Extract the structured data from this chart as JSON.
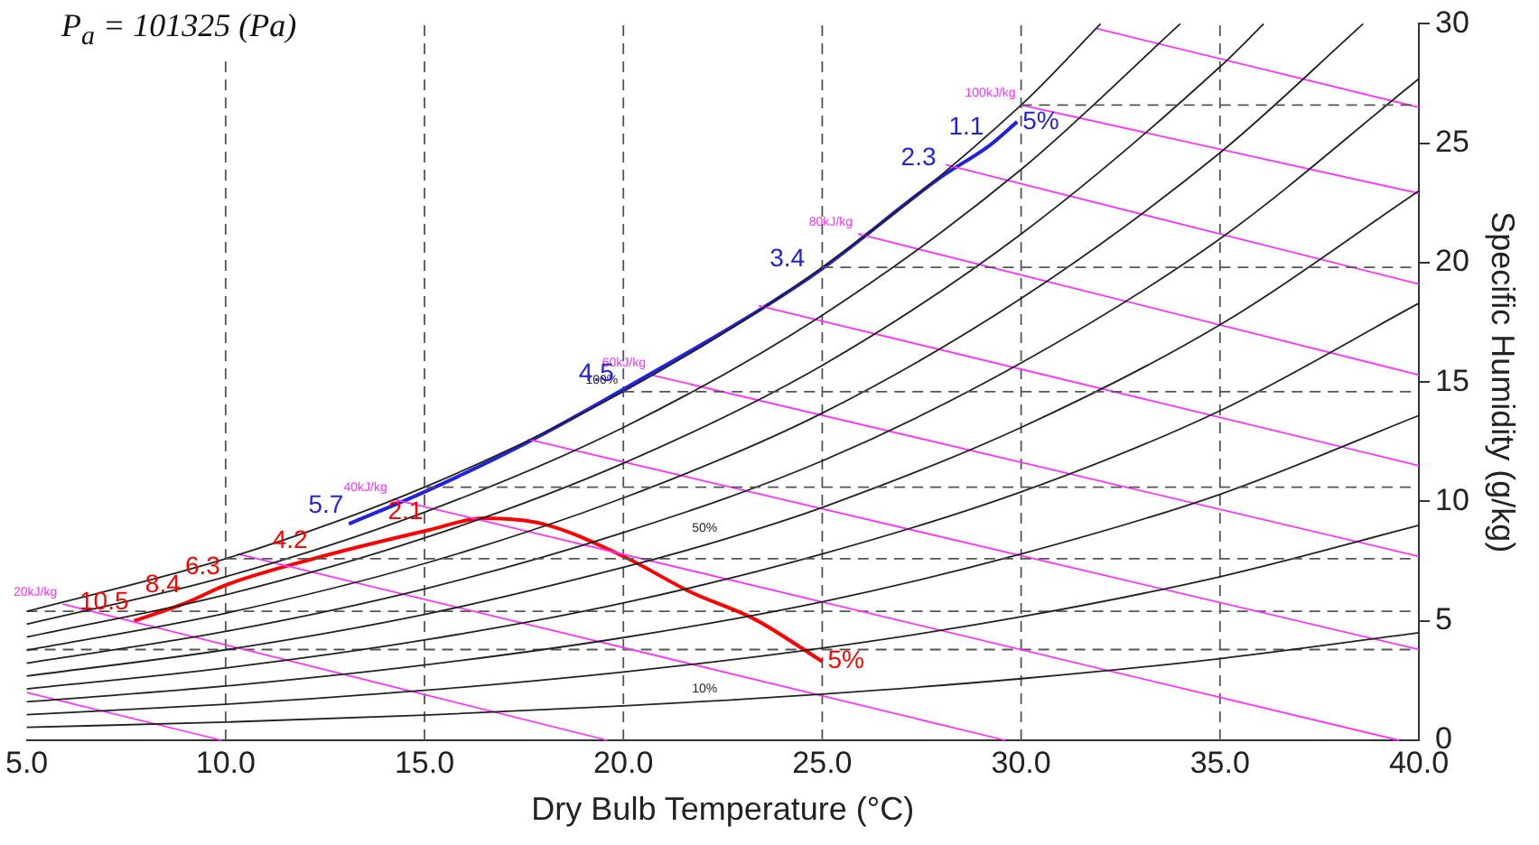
{
  "chart_data": {
    "type": "line",
    "title": "P$_{a}$ = 101325 (Pa)",
    "xlabel": "Dry Bulb Temperature (°C)",
    "ylabel": "Specific Humidity (g/kg)",
    "marker": "none",
    "xlim": [
      5,
      40
    ],
    "xticks": [
      {
        "value": 5,
        "label": "5.0"
      },
      {
        "value": 10,
        "label": "10.0"
      },
      {
        "value": 15,
        "label": "15.0"
      },
      {
        "value": 20,
        "label": "20.0"
      },
      {
        "value": 25,
        "label": "25.0"
      },
      {
        "value": 30,
        "label": "30.0"
      },
      {
        "value": 35,
        "label": "35.0"
      },
      {
        "value": 40,
        "label": "40.0"
      }
    ],
    "ylim": [
      0,
      30
    ],
    "yticks": [
      0,
      5,
      10,
      15,
      20,
      25,
      30
    ],
    "ref_lines": [
      {
        "axis": "x",
        "value": 10,
        "color": "#555555",
        "line_style": "dashed"
      },
      {
        "axis": "x",
        "value": 15,
        "color": "#555555",
        "line_style": "dashed"
      },
      {
        "axis": "x",
        "value": 20,
        "color": "#555555",
        "line_style": "dashed"
      },
      {
        "axis": "x",
        "value": 25,
        "color": "#555555",
        "line_style": "dashed"
      },
      {
        "axis": "x",
        "value": 30,
        "color": "#555555",
        "line_style": "dashed"
      },
      {
        "axis": "x",
        "value": 35,
        "color": "#555555",
        "line_style": "dashed"
      },
      {
        "axis": "y",
        "value": 3.8,
        "color": "#555555",
        "line_style": "dashed"
      },
      {
        "axis": "y",
        "value": 5.4,
        "color": "#555555",
        "line_style": "dashed"
      }
    ],
    "annotations": [
      {
        "text": "100%",
        "x": 20,
        "y": 14.6
      },
      {
        "text": "50%",
        "x": 22.5,
        "y": 8.4
      },
      {
        "text": "10%",
        "x": 22.5,
        "y": 1.67
      },
      {
        "text": "20kJ/kg",
        "x": 5.9,
        "y": 5.7
      },
      {
        "text": "40kJ/kg",
        "x": 14.2,
        "y": 10.1
      },
      {
        "text": "60kJ/kg",
        "x": 20.7,
        "y": 15.3
      },
      {
        "text": "80kJ/kg",
        "x": 25.9,
        "y": 21.2
      },
      {
        "text": "100kJ/kg",
        "x": 30.0,
        "y": 26.6
      },
      {
        "text": "10.5",
        "x": 7.7,
        "y": 5.0
      },
      {
        "text": "8.4",
        "x": 9.0,
        "y": 5.75
      },
      {
        "text": "6.3",
        "x": 10.0,
        "y": 6.5
      },
      {
        "text": "4.2",
        "x": 12.2,
        "y": 7.6
      },
      {
        "text": "2.1",
        "x": 15.1,
        "y": 8.8
      },
      {
        "text": "5%",
        "x": 25.0,
        "y": 3.3
      },
      {
        "text": "5.7",
        "x": 13.1,
        "y": 9.06
      },
      {
        "text": "4.5",
        "x": 19.9,
        "y": 14.6
      },
      {
        "text": "3.4",
        "x": 24.7,
        "y": 19.4
      },
      {
        "text": "2.3",
        "x": 28.0,
        "y": 23.6
      },
      {
        "text": "1.1",
        "x": 29.2,
        "y": 24.9
      },
      {
        "text": "5%",
        "x": 29.9,
        "y": 25.9
      }
    ],
    "series": [
      {
        "color": "#555555",
        "line_style": "dashed",
        "x": [
          10,
          40
        ],
        "values": [
          7.6,
          7.6
        ]
      },
      {
        "color": "#555555",
        "line_style": "dashed",
        "x": [
          15,
          40
        ],
        "values": [
          10.6,
          10.6
        ]
      },
      {
        "color": "#555555",
        "line_style": "dashed",
        "x": [
          20,
          40
        ],
        "values": [
          14.6,
          14.6
        ]
      },
      {
        "color": "#555555",
        "line_style": "dashed",
        "x": [
          25,
          40
        ],
        "values": [
          19.8,
          19.8
        ]
      },
      {
        "color": "#555555",
        "line_style": "dashed",
        "x": [
          30,
          40
        ],
        "values": [
          26.6,
          26.6
        ]
      },
      {
        "color": "#222222",
        "x": [
          5,
          10,
          15,
          20,
          25,
          30,
          32
        ],
        "values": [
          5.4,
          7.6,
          10.6,
          14.6,
          19.8,
          26.6,
          30
        ]
      },
      {
        "color": "#222222",
        "x": [
          5,
          10,
          15,
          20,
          25,
          30,
          34
        ],
        "values": [
          4.86,
          6.85,
          9.55,
          13.1,
          17.8,
          23.9,
          30
        ]
      },
      {
        "color": "#222222",
        "x": [
          5,
          10,
          15,
          20,
          25,
          30,
          35,
          36.1
        ],
        "values": [
          4.32,
          6.09,
          8.47,
          11.6,
          15.7,
          21.2,
          28.2,
          30
        ]
      },
      {
        "color": "#222222",
        "x": [
          5,
          10,
          15,
          20,
          25,
          30,
          35,
          38.6
        ],
        "values": [
          3.77,
          5.32,
          7.4,
          10.15,
          13.7,
          18.5,
          24.6,
          30
        ]
      },
      {
        "color": "#222222",
        "x": [
          5,
          10,
          15,
          20,
          25,
          30,
          35,
          40
        ],
        "values": [
          3.23,
          4.56,
          6.34,
          8.7,
          11.7,
          15.8,
          21.0,
          27.7
        ]
      },
      {
        "color": "#222222",
        "x": [
          5,
          10,
          15,
          20,
          22.5,
          25,
          30,
          35,
          40
        ],
        "values": [
          2.69,
          3.79,
          5.27,
          7.24,
          8.4,
          9.75,
          13.1,
          17.4,
          23.0
        ]
      },
      {
        "color": "#222222",
        "x": [
          5,
          10,
          15,
          20,
          25,
          30,
          35,
          40
        ],
        "values": [
          2.15,
          3.03,
          4.2,
          5.75,
          7.8,
          10.4,
          13.8,
          18.3
        ]
      },
      {
        "color": "#222222",
        "x": [
          5,
          10,
          15,
          20,
          25,
          30,
          35,
          40
        ],
        "values": [
          1.61,
          2.27,
          3.15,
          4.3,
          5.8,
          7.8,
          10.3,
          13.6
        ]
      },
      {
        "color": "#222222",
        "x": [
          5,
          10,
          15,
          20,
          25,
          30,
          35,
          40
        ],
        "values": [
          1.07,
          1.51,
          2.09,
          2.86,
          3.86,
          5.17,
          6.85,
          9.0
        ]
      },
      {
        "color": "#222222",
        "x": [
          5,
          10,
          15,
          20,
          22.5,
          25,
          30,
          35,
          40
        ],
        "values": [
          0.54,
          0.76,
          1.05,
          1.44,
          1.67,
          1.93,
          2.58,
          3.42,
          4.5
        ]
      },
      {
        "color": "#ff33ff",
        "x": [
          5,
          9.9
        ],
        "values": [
          2.0,
          0
        ]
      },
      {
        "color": "#ff33ff",
        "x": [
          5.9,
          19.6
        ],
        "values": [
          5.7,
          0
        ]
      },
      {
        "color": "#ff33ff",
        "x": [
          10.3,
          29.6
        ],
        "values": [
          7.8,
          0
        ]
      },
      {
        "color": "#ff33ff",
        "x": [
          14.2,
          39.5
        ],
        "values": [
          10.1,
          0
        ]
      },
      {
        "color": "#ff33ff",
        "x": [
          17.6,
          40
        ],
        "values": [
          12.6,
          3.8
        ]
      },
      {
        "color": "#ff33ff",
        "x": [
          20.7,
          40
        ],
        "values": [
          15.3,
          7.7
        ]
      },
      {
        "color": "#ff33ff",
        "x": [
          23.4,
          40
        ],
        "values": [
          18.2,
          11.5
        ]
      },
      {
        "color": "#ff33ff",
        "x": [
          25.9,
          40
        ],
        "values": [
          21.2,
          15.3
        ]
      },
      {
        "color": "#ff33ff",
        "x": [
          28.1,
          40
        ],
        "values": [
          24.1,
          19.1
        ]
      },
      {
        "color": "#ff33ff",
        "x": [
          30.0,
          40
        ],
        "values": [
          26.6,
          22.9
        ]
      },
      {
        "color": "#ff33ff",
        "x": [
          31.9,
          40
        ],
        "values": [
          29.8,
          26.5
        ]
      },
      {
        "color": "#ff0000",
        "x": [
          7.7,
          9.0,
          10.0,
          12.2,
          15.1,
          16.5,
          18.0,
          20.0,
          21.7,
          23.3,
          25.0
        ],
        "values": [
          5.0,
          5.75,
          6.5,
          7.6,
          8.8,
          9.3,
          9.05,
          7.7,
          6.2,
          5.07,
          3.3
        ]
      },
      {
        "color": "#2222dd",
        "x": [
          13.1,
          15.0,
          17.5,
          19.9,
          24.7,
          28.0,
          29.2,
          29.9
        ],
        "values": [
          9.06,
          10.4,
          12.4,
          14.6,
          19.4,
          23.6,
          24.9,
          25.9
        ]
      }
    ]
  }
}
